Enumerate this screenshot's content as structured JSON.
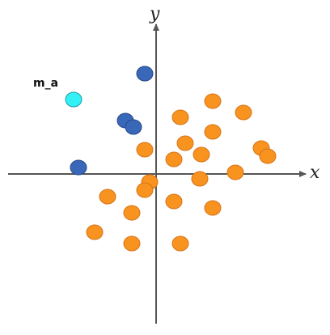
{
  "chart_data": {
    "type": "scatter",
    "title": "",
    "xlabel": "x",
    "ylabel": "y",
    "xlim": [
      -7,
      7
    ],
    "ylim": [
      -7,
      7
    ],
    "grid": false,
    "legend": "none",
    "colors": {
      "orange": "#f7931e",
      "orange_edge": "#d8741a",
      "blue": "#3a68b8",
      "blue_edge": "#25478a",
      "cyan": "#33f0f5",
      "cyan_edge": "#1a9aa8",
      "axis": "#555555"
    },
    "series": [
      {
        "color_key": "orange",
        "points": [
          [
            3.5,
            4.5
          ],
          [
            5.4,
            3.8
          ],
          [
            1.5,
            3.5
          ],
          [
            3.5,
            2.6
          ],
          [
            1.8,
            1.9
          ],
          [
            -0.7,
            1.5
          ],
          [
            1.1,
            0.9
          ],
          [
            2.8,
            1.2
          ],
          [
            6.5,
            1.6
          ],
          [
            6.9,
            1.1
          ],
          [
            4.9,
            0.1
          ],
          [
            2.7,
            -0.3
          ],
          [
            -0.4,
            -0.5
          ],
          [
            -0.7,
            -1.0
          ],
          [
            -3.0,
            -1.4
          ],
          [
            1.1,
            -1.7
          ],
          [
            3.5,
            -2.1
          ],
          [
            -1.5,
            -2.4
          ],
          [
            -3.8,
            -3.6
          ],
          [
            -1.5,
            -4.3
          ],
          [
            1.5,
            -4.3
          ]
        ]
      },
      {
        "color_key": "blue",
        "points": [
          [
            -0.7,
            6.2
          ],
          [
            -1.9,
            3.3
          ],
          [
            -1.4,
            2.9
          ],
          [
            -4.8,
            0.4
          ]
        ]
      },
      {
        "color_key": "cyan",
        "points": [
          [
            -5.1,
            4.6
          ]
        ],
        "label": "m_a"
      }
    ]
  }
}
